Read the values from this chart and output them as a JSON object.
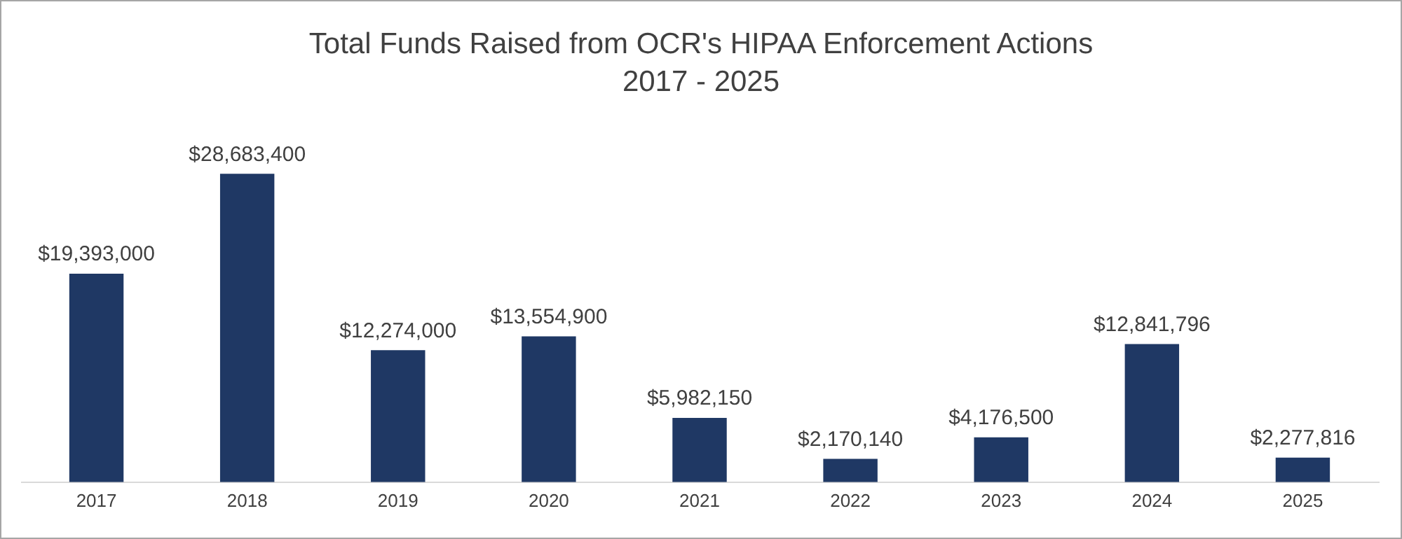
{
  "chart_data": {
    "type": "bar",
    "title": "Total Funds Raised from OCR's HIPAA Enforcement Actions",
    "subtitle": "2017 - 2025",
    "categories": [
      "2017",
      "2018",
      "2019",
      "2020",
      "2021",
      "2022",
      "2023",
      "2024",
      "2025"
    ],
    "values": [
      19393000,
      28683400,
      12274000,
      13554900,
      5982150,
      2170140,
      4176500,
      12841796,
      2277816
    ],
    "value_labels": [
      "$19,393,000",
      "$28,683,400",
      "$12,274,000",
      "$13,554,900",
      "$5,982,150",
      "$2,170,140",
      "$4,176,500",
      "$12,841,796",
      "$2,277,816"
    ],
    "color": "#1f3864",
    "grid": false,
    "legend": false
  }
}
